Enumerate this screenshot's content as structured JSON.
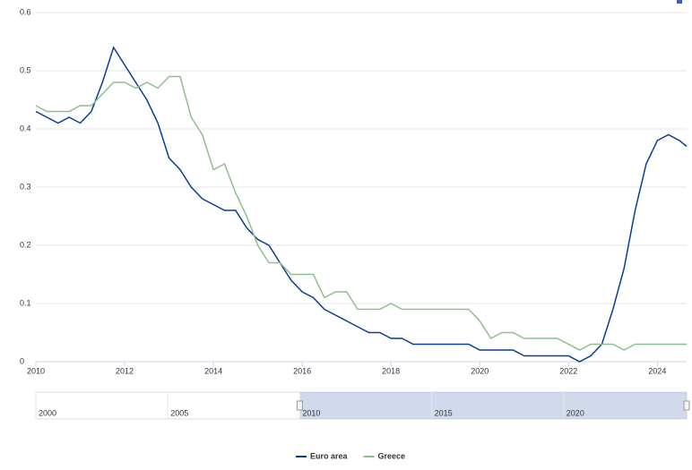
{
  "chart_data": {
    "type": "line",
    "x": [
      2010,
      2010.25,
      2010.5,
      2010.75,
      2011,
      2011.25,
      2011.5,
      2011.75,
      2012,
      2012.25,
      2012.5,
      2012.75,
      2013,
      2013.25,
      2013.5,
      2013.75,
      2014,
      2014.25,
      2014.5,
      2014.75,
      2015,
      2015.25,
      2015.5,
      2015.75,
      2016,
      2016.25,
      2016.5,
      2016.75,
      2017,
      2017.25,
      2017.5,
      2017.75,
      2018,
      2018.25,
      2018.5,
      2018.75,
      2019,
      2019.25,
      2019.5,
      2019.75,
      2020,
      2020.25,
      2020.5,
      2020.75,
      2021,
      2021.25,
      2021.5,
      2021.75,
      2022,
      2022.25,
      2022.5,
      2022.75,
      2023,
      2023.25,
      2023.5,
      2023.75,
      2024,
      2024.25,
      2024.5,
      2024.66
    ],
    "series": [
      {
        "name": "Euro area",
        "color": "#0b3c96",
        "values": [
          0.43,
          0.42,
          0.41,
          0.42,
          0.41,
          0.43,
          0.48,
          0.54,
          0.51,
          0.48,
          0.45,
          0.41,
          0.35,
          0.33,
          0.3,
          0.28,
          0.27,
          0.26,
          0.26,
          0.23,
          0.21,
          0.2,
          0.17,
          0.14,
          0.12,
          0.11,
          0.09,
          0.08,
          0.07,
          0.06,
          0.05,
          0.05,
          0.04,
          0.04,
          0.03,
          0.03,
          0.03,
          0.03,
          0.03,
          0.03,
          0.02,
          0.02,
          0.02,
          0.02,
          0.01,
          0.01,
          0.01,
          0.01,
          0.01,
          0.0,
          0.01,
          0.03,
          0.09,
          0.16,
          0.26,
          0.34,
          0.38,
          0.39,
          0.38,
          0.37
        ]
      },
      {
        "name": "Greece",
        "color": "#8dc08d",
        "values": [
          0.44,
          0.43,
          0.43,
          0.43,
          0.44,
          0.44,
          0.46,
          0.48,
          0.48,
          0.47,
          0.48,
          0.47,
          0.49,
          0.49,
          0.42,
          0.39,
          0.33,
          0.34,
          0.29,
          0.25,
          0.2,
          0.17,
          0.17,
          0.15,
          0.15,
          0.15,
          0.11,
          0.12,
          0.12,
          0.09,
          0.09,
          0.09,
          0.1,
          0.09,
          0.09,
          0.09,
          0.09,
          0.09,
          0.09,
          0.09,
          0.07,
          0.04,
          0.05,
          0.05,
          0.04,
          0.04,
          0.04,
          0.04,
          0.03,
          0.02,
          0.03,
          0.03,
          0.03,
          0.02,
          0.03,
          0.03,
          0.03,
          0.03,
          0.03,
          0.03
        ]
      }
    ],
    "xlim": [
      2010,
      2024.66
    ],
    "xticks": [
      2010,
      2012,
      2014,
      2016,
      2018,
      2020,
      2022,
      2024
    ],
    "ylim": [
      0,
      0.6
    ],
    "yticks": [
      0,
      0.1,
      0.2,
      0.3,
      0.4,
      0.5,
      0.6
    ],
    "grid": true,
    "legend": "bottom",
    "navigator": {
      "xlim": [
        2000,
        2024.66
      ],
      "xticks": [
        2000,
        2005,
        2010,
        2015,
        2020
      ]
    }
  }
}
